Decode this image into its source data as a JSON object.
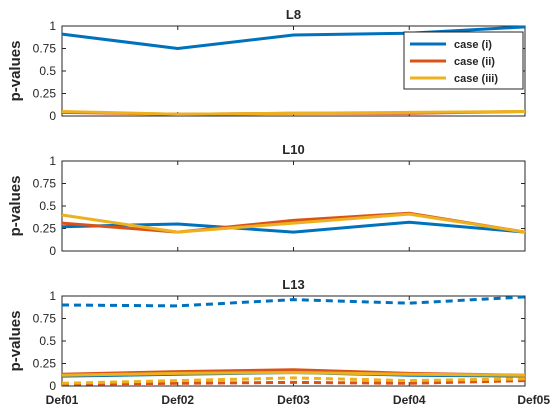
{
  "colors": {
    "case_i": "#0072BD",
    "case_ii": "#D95319",
    "case_iii": "#EDB120"
  },
  "chart_data": [
    {
      "type": "line",
      "title": "L8",
      "ylabel": "p-values",
      "categories": [
        "Def01",
        "Def02",
        "Def03",
        "Def04",
        "Def05"
      ],
      "ylim": [
        0,
        1
      ],
      "yticks": [
        "0",
        "0.25",
        "0.5",
        "0.75",
        "1"
      ],
      "show_xticklabels": false,
      "legend": {
        "position": "top-right",
        "entries": [
          "case (i)",
          "case (ii)",
          "case (iii)"
        ]
      },
      "series": [
        {
          "name": "case (i)",
          "color_key": "case_i",
          "style": "solid",
          "values": [
            0.91,
            0.75,
            0.9,
            0.92,
            0.99
          ]
        },
        {
          "name": "case (ii)",
          "color_key": "case_ii",
          "style": "solid",
          "values": [
            0.04,
            0.02,
            0.03,
            0.03,
            0.05
          ]
        },
        {
          "name": "case (iii)",
          "color_key": "case_iii",
          "style": "solid",
          "values": [
            0.05,
            0.02,
            0.03,
            0.04,
            0.05
          ]
        }
      ]
    },
    {
      "type": "line",
      "title": "L10",
      "ylabel": "p-values",
      "categories": [
        "Def01",
        "Def02",
        "Def03",
        "Def04",
        "Def05"
      ],
      "ylim": [
        0,
        1
      ],
      "yticks": [
        "0",
        "0.25",
        "0.5",
        "0.75",
        "1"
      ],
      "show_xticklabels": false,
      "series": [
        {
          "name": "case (i)",
          "color_key": "case_i",
          "style": "solid",
          "values": [
            0.27,
            0.3,
            0.21,
            0.32,
            0.21
          ]
        },
        {
          "name": "case (ii)",
          "color_key": "case_ii",
          "style": "solid",
          "values": [
            0.31,
            0.21,
            0.34,
            0.42,
            0.21
          ]
        },
        {
          "name": "case (iii)",
          "color_key": "case_iii",
          "style": "solid",
          "values": [
            0.4,
            0.21,
            0.31,
            0.41,
            0.21
          ]
        }
      ]
    },
    {
      "type": "line",
      "title": "L13",
      "ylabel": "p-values",
      "categories": [
        "Def01",
        "Def02",
        "Def03",
        "Def04",
        "Def05"
      ],
      "ylim": [
        0,
        1
      ],
      "yticks": [
        "0",
        "0.25",
        "0.5",
        "0.75",
        "1"
      ],
      "show_xticklabels": true,
      "series": [
        {
          "name": "case (i) solid",
          "color_key": "case_i",
          "style": "solid",
          "values": [
            0.11,
            0.13,
            0.15,
            0.12,
            0.11
          ]
        },
        {
          "name": "case (ii) solid",
          "color_key": "case_ii",
          "style": "solid",
          "values": [
            0.13,
            0.16,
            0.18,
            0.14,
            0.12
          ]
        },
        {
          "name": "case (iii) solid",
          "color_key": "case_iii",
          "style": "solid",
          "values": [
            0.12,
            0.14,
            0.15,
            0.13,
            0.12
          ]
        },
        {
          "name": "case (i) dashed",
          "color_key": "case_i",
          "style": "dashed",
          "values": [
            0.9,
            0.89,
            0.96,
            0.92,
            0.99
          ]
        },
        {
          "name": "case (ii) dashed",
          "color_key": "case_ii",
          "style": "dashed",
          "values": [
            0.02,
            0.03,
            0.04,
            0.03,
            0.06
          ]
        },
        {
          "name": "case (iii) dashed",
          "color_key": "case_iii",
          "style": "dashed",
          "values": [
            0.03,
            0.06,
            0.09,
            0.06,
            0.08
          ]
        }
      ]
    }
  ]
}
